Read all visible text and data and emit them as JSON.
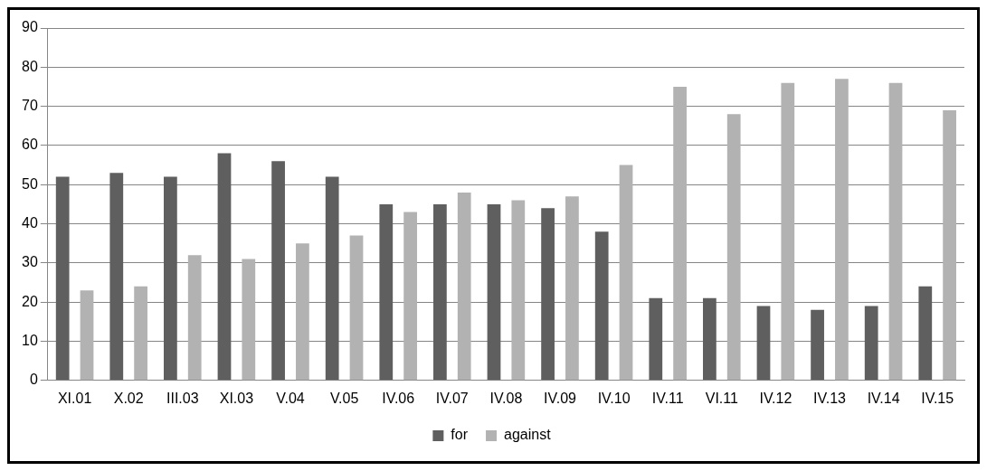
{
  "chart_data": {
    "type": "bar",
    "categories": [
      "XI.01",
      "X.02",
      "III.03",
      "XI.03",
      "V.04",
      "V.05",
      "IV.06",
      "IV.07",
      "IV.08",
      "IV.09",
      "IV.10",
      "IV.11",
      "VI.11",
      "IV.12",
      "IV.13",
      "IV.14",
      "IV.15"
    ],
    "series": [
      {
        "name": "for",
        "color": "#5f5f5f",
        "values": [
          52,
          53,
          52,
          58,
          56,
          52,
          45,
          45,
          45,
          44,
          38,
          21,
          21,
          19,
          18,
          19,
          24
        ]
      },
      {
        "name": "against",
        "color": "#b2b2b2",
        "values": [
          23,
          24,
          32,
          31,
          35,
          37,
          43,
          48,
          46,
          47,
          55,
          75,
          68,
          76,
          77,
          76,
          69
        ]
      }
    ],
    "ylim": [
      0,
      90
    ],
    "yticks": [
      0,
      10,
      20,
      30,
      40,
      50,
      60,
      70,
      80,
      90
    ],
    "grid": "y",
    "legend": "bottom"
  }
}
